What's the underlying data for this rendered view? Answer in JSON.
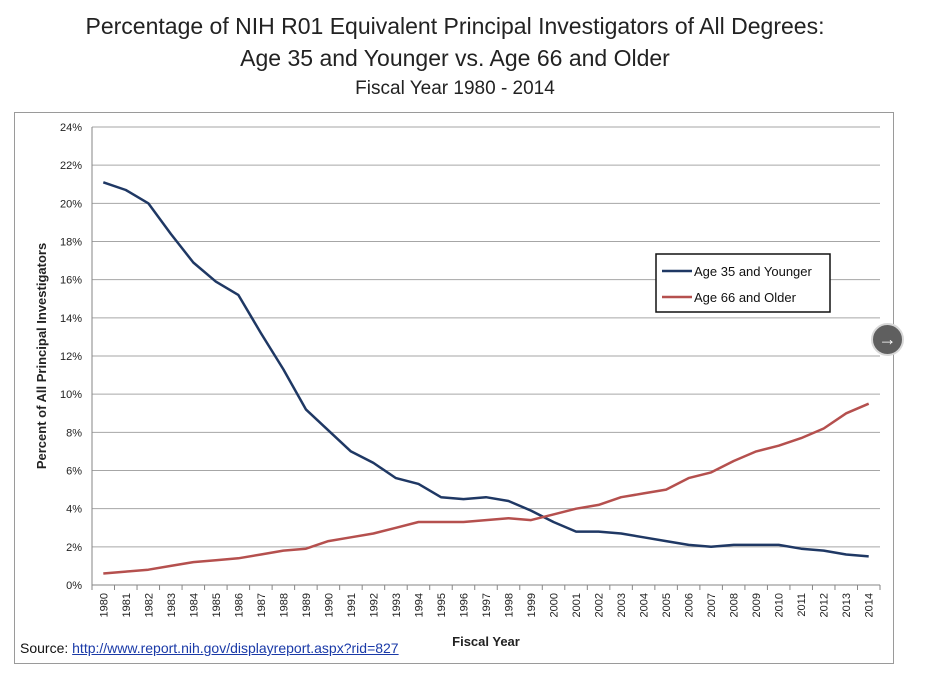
{
  "chart_data": {
    "type": "line",
    "title_line1": "Percentage of NIH R01 Equivalent Principal Investigators of All Degrees:",
    "title_line2": "Age 35 and Younger vs. Age 66 and Older",
    "subtitle": "Fiscal Year 1980 - 2014",
    "xlabel": "Fiscal Year",
    "ylabel": "Percent of All Principal Investigators",
    "ylim": [
      0,
      24
    ],
    "yticks": [
      "0%",
      "2%",
      "4%",
      "6%",
      "8%",
      "10%",
      "12%",
      "14%",
      "16%",
      "18%",
      "20%",
      "22%",
      "24%"
    ],
    "grid": "horizontal",
    "legend_position": "upper-right",
    "x": [
      "1980",
      "1981",
      "1982",
      "1983",
      "1984",
      "1985",
      "1986",
      "1987",
      "1988",
      "1989",
      "1990",
      "1991",
      "1992",
      "1993",
      "1994",
      "1995",
      "1996",
      "1997",
      "1998",
      "1999",
      "2000",
      "2001",
      "2002",
      "2003",
      "2004",
      "2005",
      "2006",
      "2007",
      "2008",
      "2009",
      "2010",
      "2011",
      "2012",
      "2013",
      "2014"
    ],
    "series": [
      {
        "name": "Age 35 and Younger",
        "color": "#1f3864",
        "values": [
          21.1,
          20.7,
          20.0,
          18.4,
          16.9,
          15.9,
          15.2,
          13.2,
          11.3,
          9.2,
          8.1,
          7.0,
          6.4,
          5.6,
          5.3,
          4.6,
          4.5,
          4.6,
          4.4,
          3.9,
          3.3,
          2.8,
          2.8,
          2.7,
          2.5,
          2.3,
          2.1,
          2.0,
          2.1,
          2.1,
          2.1,
          1.9,
          1.8,
          1.6,
          1.5
        ]
      },
      {
        "name": "Age 66 and Older",
        "color": "#b5504e",
        "values": [
          0.6,
          0.7,
          0.8,
          1.0,
          1.2,
          1.3,
          1.4,
          1.6,
          1.8,
          1.9,
          2.3,
          2.5,
          2.7,
          3.0,
          3.3,
          3.3,
          3.3,
          3.4,
          3.5,
          3.4,
          3.7,
          4.0,
          4.2,
          4.6,
          4.8,
          5.0,
          5.6,
          5.9,
          6.5,
          7.0,
          7.3,
          7.7,
          8.2,
          9.0,
          9.5
        ]
      }
    ]
  },
  "source": {
    "label": "Source:",
    "link_text": "http://www.report.nih.gov/displayreport.aspx?rid=827"
  },
  "nav": {
    "arrow": "→"
  }
}
